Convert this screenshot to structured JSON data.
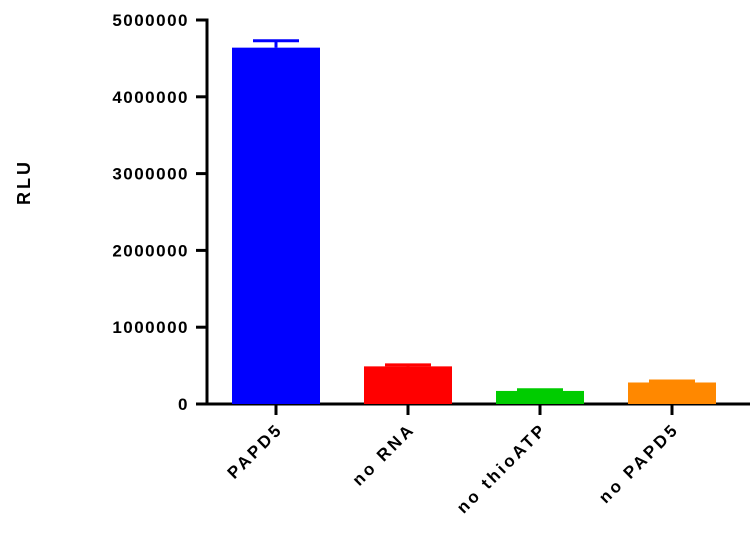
{
  "chart_data": {
    "type": "bar",
    "categories": [
      "PAPD5",
      "no RNA",
      "no thioATP",
      "no PAPD5"
    ],
    "values": [
      4640000,
      490000,
      170000,
      280000
    ],
    "errors": [
      90000,
      20000,
      15000,
      20000
    ],
    "colors": [
      "#0000ff",
      "#ff0000",
      "#00cc00",
      "#ff8800"
    ],
    "title": "",
    "xlabel": "",
    "ylabel": "RLU",
    "ylim": [
      0,
      5000000
    ],
    "yticks": [
      0,
      1000000,
      2000000,
      3000000,
      4000000,
      5000000
    ],
    "ytick_labels": [
      "0",
      "1000000",
      "2000000",
      "3000000",
      "4000000",
      "5000000"
    ],
    "grid": false,
    "legend": "none"
  }
}
